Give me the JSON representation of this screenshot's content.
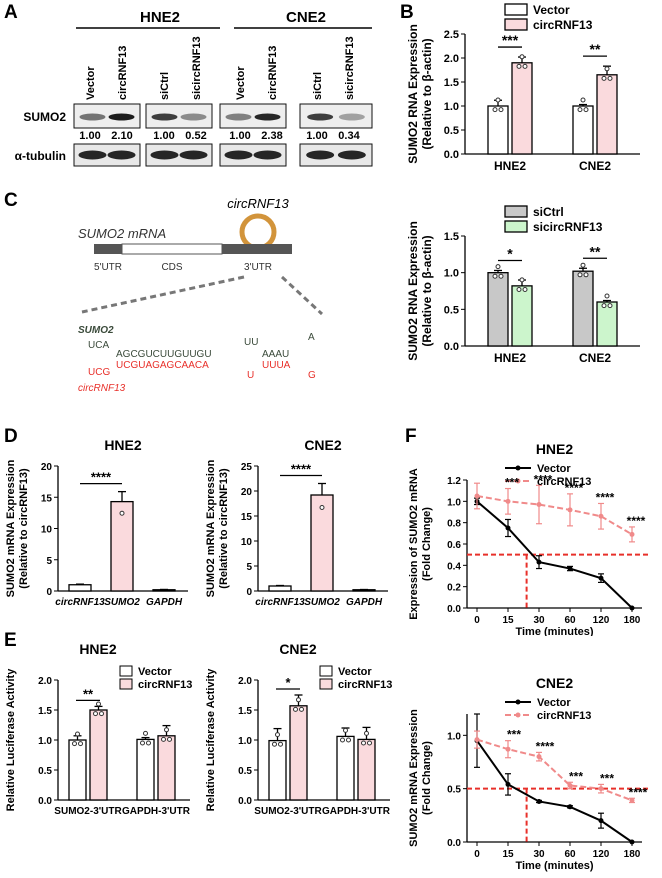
{
  "panels": {
    "A": "A",
    "B": "B",
    "C": "C",
    "D": "D",
    "E": "E",
    "F": "F"
  },
  "panel_a": {
    "group1": "HNE2",
    "group2": "CNE2",
    "lanes": [
      "Vector",
      "circRNF13",
      "siCtrl",
      "sicircRNF13",
      "Vector",
      "circRNF13",
      "siCtrl",
      "sicircRNF13"
    ],
    "row1_label": "SUMO2",
    "row2_label": "α-tubulin",
    "quant": [
      "1.00",
      "2.10",
      "1.00",
      "0.52",
      "1.00",
      "2.38",
      "1.00",
      "0.34"
    ]
  },
  "panel_c": {
    "circ_label": "circRNF13",
    "mrna_label": "SUMO2 mRNA",
    "region_5utr": "5'UTR",
    "region_cds": "CDS",
    "region_3utr": "3'UTR",
    "sumo2_name": "SUMO2",
    "circ_name": "circRNF13",
    "seq_top": {
      "a": "UCA",
      "b": "AGCGUCUUGUUGU",
      "c": "UU",
      "d": "AAAU",
      "e": "A"
    },
    "seq_bottom": {
      "a": "UCG",
      "b": "UCGUAGAGCAACA",
      "c": "U",
      "d": "UUUA",
      "e": "G"
    },
    "top_color": "#3a4a3a",
    "bottom_color": "#e8302a"
  },
  "colors": {
    "pink": "#fadadd",
    "green": "#ccf5cc",
    "gray": "#c8c8c8",
    "red": "#e8302a",
    "dash_pink": "#f08a8a"
  },
  "chart_data": [
    {
      "id": "B1",
      "type": "bar",
      "ylabel": "SUMO2 RNA Expression (Relative to β-actin)",
      "categories": [
        "HNE2",
        "CNE2"
      ],
      "series": [
        {
          "name": "Vector",
          "values": [
            1.0,
            1.0
          ],
          "err": [
            0.12,
            0.03
          ]
        },
        {
          "name": "circRNF13",
          "values": [
            1.9,
            1.65
          ],
          "err": [
            0.12,
            0.18
          ]
        }
      ],
      "ylim": [
        0,
        2.5
      ],
      "yticks": [
        "0.0",
        "0.5",
        "1.0",
        "1.5",
        "2.0",
        "2.5"
      ],
      "sig": [
        "***",
        "**"
      ]
    },
    {
      "id": "B2",
      "type": "bar",
      "ylabel": "SUMO2 RNA Expression (Relative to β-actin)",
      "categories": [
        "HNE2",
        "CNE2"
      ],
      "series": [
        {
          "name": "siCtrl",
          "values": [
            1.0,
            1.02
          ],
          "err": [
            0.03,
            0.04
          ]
        },
        {
          "name": "sicircRNF13",
          "values": [
            0.82,
            0.6
          ],
          "err": [
            0.08,
            0.02
          ]
        }
      ],
      "ylim": [
        0,
        1.5
      ],
      "yticks": [
        "0.0",
        "0.5",
        "1.0",
        "1.5"
      ],
      "sig": [
        "*",
        "**"
      ]
    },
    {
      "id": "D1",
      "type": "bar",
      "title": "HNE2",
      "ylabel": "SUMO2 mRNA Expression (Relative to circRNF13)",
      "categories": [
        "circRNF13",
        "SUMO2",
        "GAPDH"
      ],
      "values": [
        1.0,
        14.3,
        0.2
      ],
      "err": [
        0.1,
        1.6,
        0.05
      ],
      "ylim": [
        0,
        20
      ],
      "yticks": [
        "0",
        "5",
        "10",
        "15",
        "20"
      ],
      "sig": "****"
    },
    {
      "id": "D2",
      "type": "bar",
      "title": "CNE2",
      "ylabel": "SUMO2 mRNA Expression (Relative to circRNF13)",
      "categories": [
        "circRNF13",
        "SUMO2",
        "GAPDH"
      ],
      "values": [
        1.0,
        19.2,
        0.25
      ],
      "err": [
        0.1,
        2.3,
        0.05
      ],
      "ylim": [
        0,
        25
      ],
      "yticks": [
        "0",
        "5",
        "10",
        "15",
        "20",
        "25"
      ],
      "sig": "****"
    },
    {
      "id": "E1",
      "type": "bar",
      "title": "HNE2",
      "ylabel": "Relative Luciferase Activity",
      "categories": [
        "SUMO2-3'UTR",
        "GAPDH-3'UTR"
      ],
      "series": [
        {
          "name": "Vector",
          "values": [
            1.0,
            1.01
          ],
          "err": [
            0.07,
            0.03
          ]
        },
        {
          "name": "circRNF13",
          "values": [
            1.5,
            1.07
          ],
          "err": [
            0.06,
            0.17
          ]
        }
      ],
      "ylim": [
        0,
        2.0
      ],
      "yticks": [
        "0.0",
        "0.5",
        "1.0",
        "1.5",
        "2.0"
      ],
      "sig": "**"
    },
    {
      "id": "E2",
      "type": "bar",
      "title": "CNE2",
      "ylabel": "Relative Luciferase Activity",
      "categories": [
        "SUMO2-3'UTR",
        "GAPDH-3'UTR"
      ],
      "series": [
        {
          "name": "Vector",
          "values": [
            0.99,
            1.06
          ],
          "err": [
            0.2,
            0.14
          ]
        },
        {
          "name": "circRNF13",
          "values": [
            1.57,
            1.01
          ],
          "err": [
            0.18,
            0.2
          ]
        }
      ],
      "ylim": [
        0,
        2.0
      ],
      "yticks": [
        "0.0",
        "0.5",
        "1.0",
        "1.5",
        "2.0"
      ],
      "sig": "*"
    },
    {
      "id": "F1",
      "type": "line",
      "title": "HNE2",
      "xlabel": "Time (minutes)",
      "ylabel": "Expression of SUMO2 mRNA (Fold Change)",
      "x": [
        "0",
        "15",
        "30",
        "60",
        "120",
        "180"
      ],
      "series": [
        {
          "name": "Vector",
          "values": [
            1.0,
            0.75,
            0.43,
            0.37,
            0.28,
            0.0
          ],
          "err": [
            0.03,
            0.08,
            0.06,
            0.02,
            0.04,
            0
          ]
        },
        {
          "name": "circRNF13",
          "values": [
            1.05,
            1.0,
            0.97,
            0.92,
            0.86,
            0.69
          ],
          "err": [
            0.12,
            0.12,
            0.18,
            0.15,
            0.12,
            0.07
          ]
        }
      ],
      "ylim": [
        0,
        1.2
      ],
      "yticks": [
        "0.0",
        "0.2",
        "0.4",
        "0.6",
        "0.8",
        "1.0",
        "1.2"
      ],
      "hline": 0.5,
      "sig": [
        "***",
        "****",
        "****",
        "****",
        "****"
      ]
    },
    {
      "id": "F2",
      "type": "line",
      "title": "CNE2",
      "xlabel": "Time (minutes)",
      "ylabel": "SUMO2 mRNA Expression (Fold Change)",
      "x": [
        "0",
        "15",
        "30",
        "60",
        "120",
        "180"
      ],
      "series": [
        {
          "name": "Vector",
          "values": [
            0.95,
            0.54,
            0.38,
            0.33,
            0.2,
            0.0
          ],
          "err": [
            0.25,
            0.1,
            0.01,
            0.01,
            0.07,
            0
          ]
        },
        {
          "name": "circRNF13",
          "values": [
            0.96,
            0.87,
            0.8,
            0.53,
            0.5,
            0.39
          ],
          "err": [
            0.08,
            0.08,
            0.04,
            0.03,
            0.04,
            0.02
          ]
        }
      ],
      "ylim": [
        0,
        1.2
      ],
      "yticks": [
        "0.0",
        "0.5",
        "1.0"
      ],
      "hline": 0.5,
      "sig": [
        "***",
        "****",
        "***",
        "***",
        "****"
      ]
    }
  ]
}
